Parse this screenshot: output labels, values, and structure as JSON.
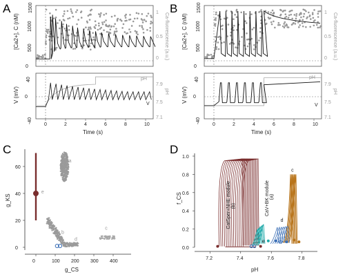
{
  "panel_labels": [
    "A",
    "B",
    "C",
    "D"
  ],
  "chart_data": [
    {
      "panel": "A-top",
      "type": "line",
      "xlabel": "",
      "ylabel": "[Ca2+], C (nM)",
      "ylabel_right": "Ca-fluorescence (a.u.)",
      "xlim": [
        -1,
        11
      ],
      "ylim": [
        0,
        1500
      ],
      "xticks": [
        "0",
        "2",
        "4",
        "6",
        "8",
        "10"
      ],
      "yticks": [
        "0",
        "500",
        "1000",
        "1500"
      ],
      "yticks_right": [
        "0",
        "0.5",
        "1"
      ],
      "series": [
        {
          "x": [
            -1,
            0,
            0.5,
            0.7,
            1.0,
            1.6,
            2.1,
            2.7,
            3.2,
            3.8,
            4.4,
            5.0,
            5.6,
            6.3,
            7.0,
            7.7,
            8.4,
            9.1,
            9.8,
            10.5
          ],
          "peaks": [
            0,
            0,
            1200,
            1250,
            1150,
            1080,
            1000,
            950,
            900,
            860,
            830,
            800,
            770,
            740,
            720,
            700,
            690,
            680,
            670,
            660
          ],
          "troughs": [
            50,
            50,
            50,
            250,
            320,
            340,
            350,
            360,
            360,
            370,
            370,
            370,
            380,
            380,
            380,
            380,
            380,
            380,
            380,
            380
          ]
        }
      ]
    },
    {
      "panel": "A-bottom",
      "type": "line",
      "xlabel": "Time (s)",
      "ylabel": "V (mV)",
      "ylabel_right": "pH",
      "xlim": [
        -1,
        11
      ],
      "ylim": [
        -40,
        40
      ],
      "xticks": [
        "0",
        "2",
        "4",
        "6",
        "8",
        "10"
      ],
      "yticks": [
        "-40",
        "0",
        "40"
      ],
      "yticks_right": [
        "7.1",
        "7.3",
        "7.5",
        "7.7",
        "7.9"
      ],
      "annotations": [
        "pH",
        "V"
      ]
    },
    {
      "panel": "B-top",
      "type": "line",
      "xlabel": "",
      "ylabel": "[Ca2+], C (nM)",
      "ylabel_right": "Ca-fluorescence (a.u.)",
      "xlim": [
        -1,
        11
      ],
      "ylim": [
        0,
        1500
      ],
      "xticks": [
        "0",
        "2",
        "4",
        "6",
        "8",
        "10"
      ],
      "yticks": [
        "0",
        "500",
        "1000",
        "1500"
      ],
      "yticks_right": [
        "0",
        "0.5",
        "1"
      ]
    },
    {
      "panel": "B-bottom",
      "type": "line",
      "xlabel": "Time (s)",
      "ylabel": "V (mV)",
      "ylabel_right": "pH",
      "xlim": [
        -1,
        11
      ],
      "ylim": [
        -40,
        40
      ],
      "xticks": [
        "0",
        "2",
        "4",
        "6",
        "8",
        "10"
      ],
      "yticks": [
        "-40",
        "0",
        "40"
      ],
      "yticks_right": [
        "7.1",
        "7.3",
        "7.5",
        "7.7",
        "7.9"
      ],
      "annotations": [
        "pH",
        "V"
      ]
    },
    {
      "panel": "C",
      "type": "scatter",
      "xlabel": "g_CS",
      "ylabel": "g_KS",
      "xlim": [
        -20,
        440
      ],
      "ylim": [
        -4,
        75
      ],
      "xticks": [
        "0",
        "100",
        "200",
        "300",
        "400"
      ],
      "yticks": [
        "0",
        "20",
        "40",
        "60"
      ],
      "clusters": [
        {
          "label": "a",
          "cx": 150,
          "cy": 60
        },
        {
          "label": "b",
          "cx": 95,
          "cy": 12
        },
        {
          "label": "c",
          "cx": 370,
          "cy": 7
        },
        {
          "label": "d",
          "cx": 185,
          "cy": 2
        },
        {
          "label": "e",
          "cx": 0,
          "cy": 40
        }
      ]
    },
    {
      "panel": "D",
      "type": "line",
      "xlabel": "pH",
      "ylabel": "f_CS",
      "xlim": [
        7.1,
        7.9
      ],
      "ylim": [
        0,
        1.0
      ],
      "xticks": [
        "7.2",
        "7.4",
        "7.6",
        "7.8"
      ],
      "yticks": [
        "0.0",
        "0.2",
        "0.4",
        "0.6",
        "0.8",
        "1.0"
      ],
      "annotations": [
        {
          "text": "CatSper+NHE module",
          "color": "#7a2e2e"
        },
        {
          "text": "(b)",
          "color": "#7a2e2e"
        },
        {
          "text": "CaV+BK module",
          "color": "#1fa9a9"
        },
        {
          "text": "(a)",
          "color": "#1fa9a9"
        },
        {
          "text": "c",
          "color": "#b8741a"
        },
        {
          "text": "d",
          "color": "#3b6fb6"
        },
        {
          "text": "e",
          "color": "#3b6fb6"
        }
      ],
      "series": [
        {
          "name": "b",
          "color": "#7a2e2e"
        },
        {
          "name": "a",
          "color": "#1fa9a9"
        },
        {
          "name": "c",
          "color": "#b8741a"
        },
        {
          "name": "d",
          "color": "#3b6fb6"
        }
      ]
    }
  ]
}
